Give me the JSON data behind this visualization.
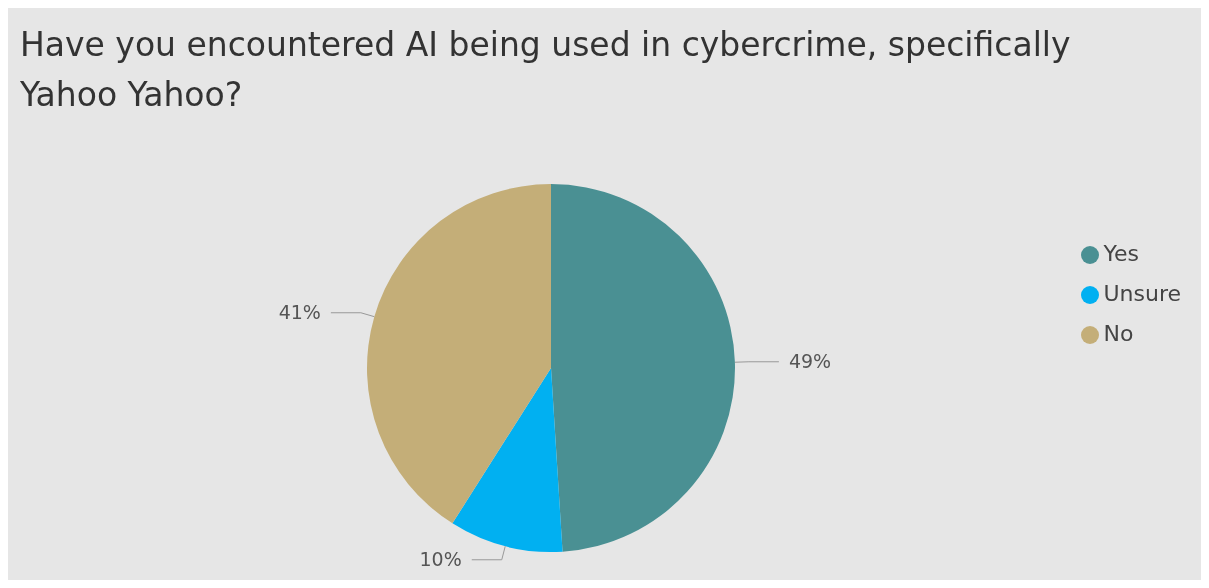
{
  "chart_data": {
    "type": "pie",
    "title": "Have you encountered AI being used in cybercrime, specifically Yahoo Yahoo?",
    "categories": [
      "Yes",
      "Unsure",
      "No"
    ],
    "values": [
      49,
      10,
      41
    ],
    "colors": [
      "#4a9093",
      "#01b0f1",
      "#c4ae78"
    ],
    "value_labels": [
      "49%",
      "10%",
      "41%"
    ],
    "legend": "right"
  }
}
